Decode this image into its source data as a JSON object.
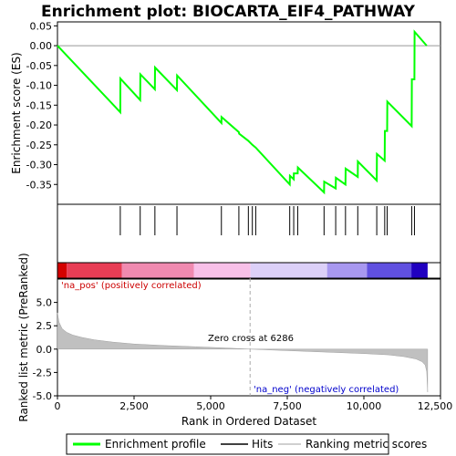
{
  "chart_data": {
    "type": "line",
    "title": "Enrichment plot: BIOCARTA_EIF4_PATHWAY",
    "es_panel": {
      "ylabel": "Enrichment score (ES)",
      "ylim": [
        -0.4,
        0.06
      ],
      "yticks": [
        0.05,
        0.0,
        -0.05,
        -0.1,
        -0.15,
        -0.2,
        -0.25,
        -0.3,
        -0.35
      ],
      "ytick_labels": [
        "0.05",
        "0.00",
        "-0.05",
        "-0.10",
        "-0.15",
        "-0.20",
        "-0.25",
        "-0.30",
        "-0.35"
      ],
      "series": [
        {
          "name": "Enrichment profile",
          "color": "#00ff00",
          "x": [
            0,
            2050,
            2055,
            2700,
            2705,
            3180,
            3185,
            3900,
            3905,
            5350,
            5355,
            5920,
            5930,
            6230,
            6360,
            6470,
            7580,
            7585,
            7710,
            7715,
            7840,
            7845,
            8700,
            8705,
            9080,
            9085,
            9400,
            9405,
            9800,
            9805,
            10420,
            10425,
            10680,
            10685,
            10760,
            10765,
            11560,
            11565,
            11650,
            11655,
            12050
          ],
          "y": [
            0.0,
            -0.168,
            -0.083,
            -0.137,
            -0.072,
            -0.11,
            -0.055,
            -0.112,
            -0.075,
            -0.195,
            -0.18,
            -0.218,
            -0.222,
            -0.24,
            -0.25,
            -0.257,
            -0.35,
            -0.328,
            -0.337,
            -0.322,
            -0.322,
            -0.307,
            -0.37,
            -0.343,
            -0.36,
            -0.333,
            -0.35,
            -0.31,
            -0.331,
            -0.292,
            -0.34,
            -0.273,
            -0.29,
            -0.215,
            -0.215,
            -0.141,
            -0.203,
            -0.085,
            -0.085,
            0.035,
            0.0
          ]
        }
      ]
    },
    "hits_panel": {
      "legend_name": "Hits",
      "hit_positions": [
        2050,
        2700,
        3180,
        3900,
        5350,
        5920,
        6230,
        6360,
        6470,
        7580,
        7710,
        7840,
        8700,
        9080,
        9400,
        9800,
        10420,
        10680,
        10760,
        11560,
        11650
      ]
    },
    "heatmap_colors": [
      "#d40000",
      "#e83d55",
      "#f08ab0",
      "#f8c0e8",
      "#dcd0f8",
      "#a898f0",
      "#6050e0",
      "#2000c0"
    ],
    "metric_panel": {
      "ylabel": "Ranked list metric (PreRanked)",
      "xlabel": "Rank in Ordered Dataset",
      "legend_name": "Ranking metric scores",
      "ylim": [
        -5.0,
        7.5
      ],
      "yticks": [
        5.0,
        2.5,
        0.0,
        -2.5,
        -5.0
      ],
      "ytick_labels": [
        "5.0",
        "2.5",
        "0.0",
        "-2.5",
        "-5.0"
      ],
      "x": [
        0,
        50,
        150,
        300,
        500,
        800,
        1200,
        1800,
        2500,
        3500,
        4500,
        5500,
        6286,
        7000,
        8000,
        9000,
        10000,
        10800,
        11300,
        11700,
        11900,
        12000,
        12050,
        12080
      ],
      "values": [
        3.9,
        2.9,
        2.2,
        1.8,
        1.5,
        1.25,
        1.0,
        0.75,
        0.55,
        0.38,
        0.25,
        0.12,
        0.0,
        -0.1,
        -0.22,
        -0.35,
        -0.48,
        -0.62,
        -0.8,
        -1.05,
        -1.35,
        -1.7,
        -2.4,
        -4.6
      ],
      "zero_cross_label": "Zero cross at 6286",
      "zero_cross_rank": 6286,
      "pos_label": "'na_pos' (positively correlated)",
      "neg_label": "'na_neg' (negatively correlated)"
    },
    "xlim": [
      0,
      12500
    ],
    "xticks": [
      0,
      2500,
      5000,
      7500,
      10000,
      12500
    ],
    "xtick_labels": [
      "0",
      "2,500",
      "5,000",
      "7,500",
      "10,000",
      "12,500"
    ],
    "legend_entries": [
      "Enrichment profile",
      "Hits",
      "Ranking metric scores"
    ]
  }
}
